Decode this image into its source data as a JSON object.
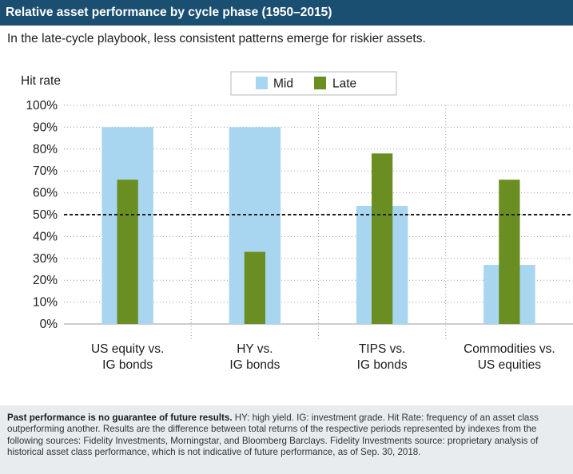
{
  "header": {
    "title": "Relative asset performance by cycle phase (1950–2015)",
    "subtitle": "In the late-cycle playbook, less consistent patterns emerge for riskier assets."
  },
  "chart_data": {
    "type": "bar",
    "ylabel": "Hit rate",
    "ylim": [
      0,
      100
    ],
    "yticks": [
      0,
      10,
      20,
      30,
      40,
      50,
      60,
      70,
      80,
      90,
      100
    ],
    "ytick_labels": [
      "0%",
      "10%",
      "20%",
      "30%",
      "40%",
      "50%",
      "60%",
      "70%",
      "80%",
      "90%",
      "100%"
    ],
    "reference_line": 50,
    "legend_position": "top-center",
    "categories": [
      [
        "US equity vs.",
        "IG bonds"
      ],
      [
        "HY vs.",
        "IG bonds"
      ],
      [
        "TIPS vs.",
        "IG bonds"
      ],
      [
        "Commodities vs.",
        "US equities"
      ]
    ],
    "series": [
      {
        "name": "Mid",
        "color": "#a8d6f0",
        "values": [
          90,
          90,
          54,
          27
        ]
      },
      {
        "name": "Late",
        "color": "#6b8e23",
        "values": [
          66,
          33,
          78,
          66
        ]
      }
    ]
  },
  "footnote": {
    "bold": "Past performance is no guarantee of future results.",
    "text": " HY: high yield. IG: investment grade. Hit Rate: frequency of an asset class outperforming another. Results are the difference between total returns of the respective periods represented by indexes from the following sources: Fidelity Investments, Morningstar, and Bloomberg Barclays. Fidelity Investments source: proprietary analysis of historical asset class performance, which is not indicative of future performance, as of Sep. 30, 2018."
  }
}
